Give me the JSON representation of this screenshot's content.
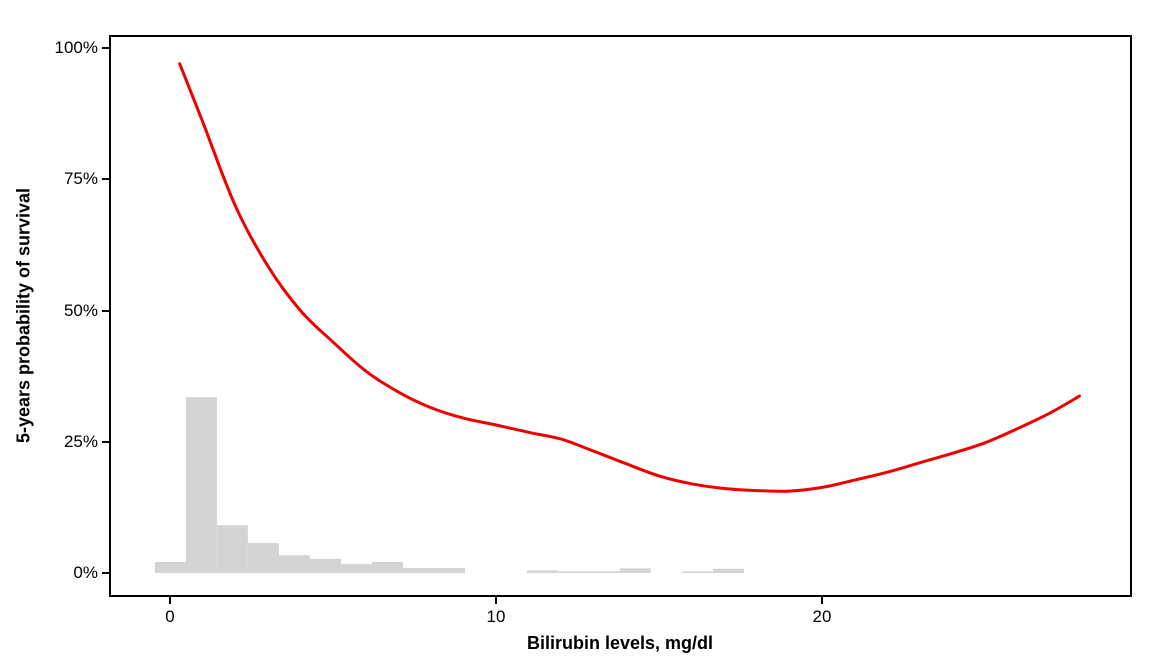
{
  "figure": {
    "background": "#FFFFFF",
    "panel_border_color": "#000000",
    "tick_color": "#000000"
  },
  "x_axis": {
    "title": "Bilirubin levels, mg/dl",
    "tick_values": [
      0,
      10,
      20
    ],
    "tick_labels": [
      "0",
      "10",
      "20"
    ]
  },
  "y_axis": {
    "title": "5-years probability of survival",
    "tick_values": [
      0,
      25,
      50,
      75,
      100
    ],
    "tick_labels": [
      "0%",
      "25%",
      "50%",
      "75%",
      "100%"
    ]
  },
  "chart_data": {
    "type": "line",
    "title": "",
    "xlabel": "Bilirubin levels, mg/dl",
    "ylabel": "5-years probability of survival",
    "xlim": [
      -1.87,
      29.51
    ],
    "ylim": [
      -4.57,
      102.48
    ],
    "grid": false,
    "legend": "none",
    "series": [
      {
        "name": "smoothed-survival-curve",
        "type": "line",
        "color": "#EE0000",
        "stroke_width": 3,
        "x": [
          0.3,
          1,
          2,
          3,
          4,
          5,
          6,
          7,
          8,
          9,
          10,
          11,
          12,
          13,
          14,
          15,
          16,
          17,
          18,
          19,
          20,
          21,
          22,
          23,
          24,
          25,
          26,
          27,
          27.9
        ],
        "y_pct": [
          97,
          86,
          70,
          58.5,
          50,
          44,
          38.5,
          34.5,
          31.5,
          29.5,
          28.2,
          26.8,
          25.5,
          23.2,
          20.8,
          18.5,
          17,
          16.1,
          15.7,
          15.6,
          16.3,
          17.7,
          19.2,
          21,
          22.8,
          24.8,
          27.5,
          30.5,
          33.7
        ]
      },
      {
        "name": "bilirubin-histogram",
        "type": "bar",
        "color": "#D4D4D4",
        "bars": [
          {
            "x0": -0.46,
            "x1": 0.49,
            "h": 2.1
          },
          {
            "x0": 0.49,
            "x1": 1.44,
            "h": 33.5
          },
          {
            "x0": 1.44,
            "x1": 2.39,
            "h": 9.1
          },
          {
            "x0": 2.39,
            "x1": 3.34,
            "h": 5.7
          },
          {
            "x0": 3.34,
            "x1": 4.29,
            "h": 3.4
          },
          {
            "x0": 4.29,
            "x1": 5.25,
            "h": 2.7
          },
          {
            "x0": 5.25,
            "x1": 6.2,
            "h": 1.7
          },
          {
            "x0": 6.2,
            "x1": 7.15,
            "h": 2.1
          },
          {
            "x0": 7.15,
            "x1": 8.1,
            "h": 0.95
          },
          {
            "x0": 8.1,
            "x1": 9.05,
            "h": 0.95
          },
          {
            "x0": 10.95,
            "x1": 11.9,
            "h": 0.5
          },
          {
            "x0": 11.9,
            "x1": 12.85,
            "h": 0.3
          },
          {
            "x0": 12.85,
            "x1": 13.8,
            "h": 0.3
          },
          {
            "x0": 13.8,
            "x1": 14.75,
            "h": 0.9
          },
          {
            "x0": 15.71,
            "x1": 16.66,
            "h": 0.3
          },
          {
            "x0": 16.66,
            "x1": 17.61,
            "h": 0.8
          }
        ]
      }
    ]
  }
}
